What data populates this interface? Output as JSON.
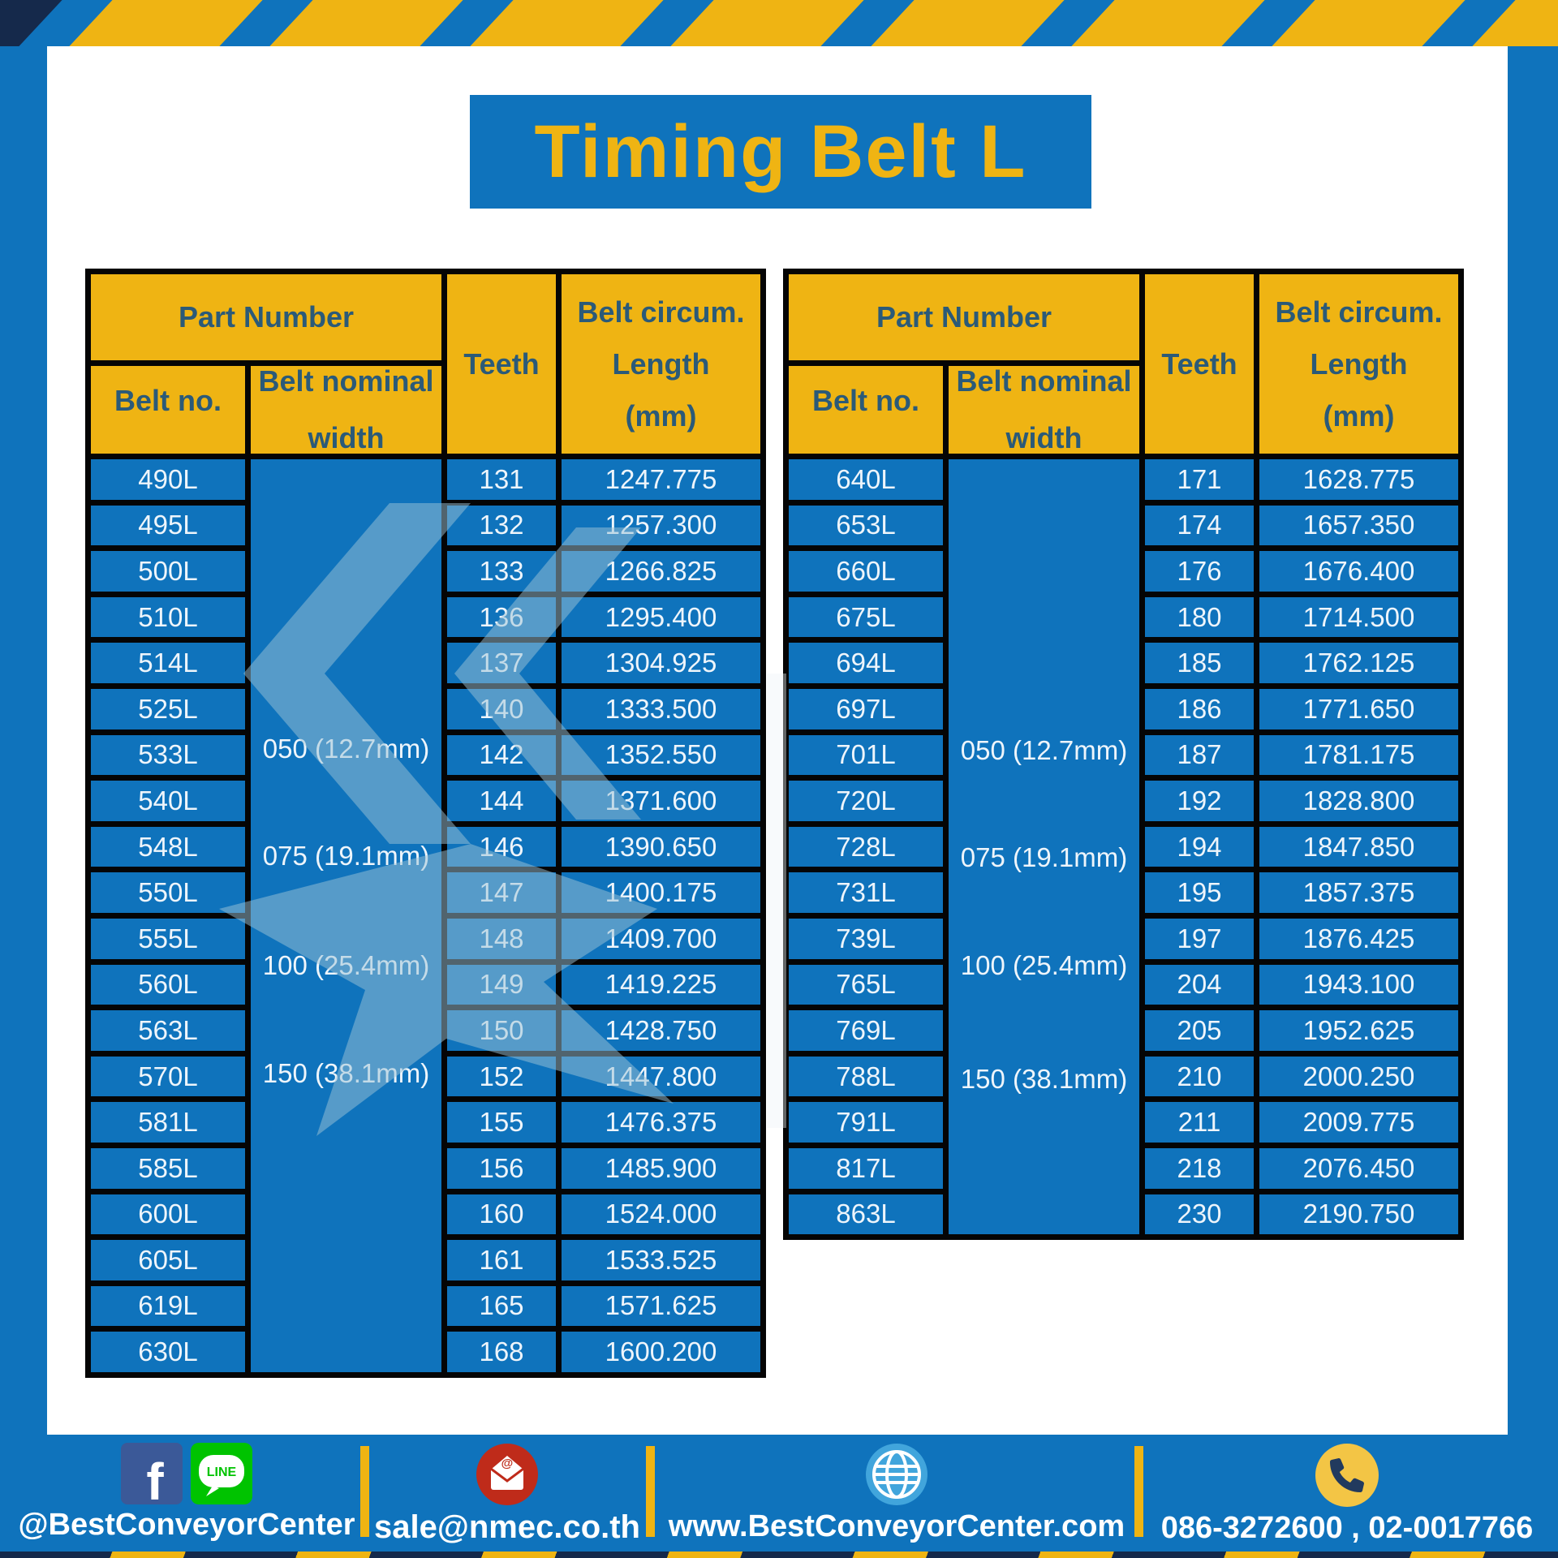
{
  "title": "Timing Belt L",
  "colors": {
    "blue": "#0f73bc",
    "yellow": "#efb413",
    "navy": "#15294b",
    "header_text": "#2b5a78"
  },
  "tables": [
    {
      "headers": {
        "part_number": "Part Number",
        "belt_no": "Belt no.",
        "belt_nominal_lines": [
          "Belt nominal",
          "width"
        ],
        "teeth": "Teeth",
        "length_lines": [
          "Belt circum.",
          "Length",
          "(mm)"
        ]
      },
      "width_labels": [
        "050 (12.7mm)",
        "075 (19.1mm)",
        "100 (25.4mm)",
        "150 (38.1mm)"
      ],
      "rows": [
        {
          "belt_no": "490L",
          "teeth": "131",
          "length": "1247.775"
        },
        {
          "belt_no": "495L",
          "teeth": "132",
          "length": "1257.300"
        },
        {
          "belt_no": "500L",
          "teeth": "133",
          "length": "1266.825"
        },
        {
          "belt_no": "510L",
          "teeth": "136",
          "length": "1295.400"
        },
        {
          "belt_no": "514L",
          "teeth": "137",
          "length": "1304.925"
        },
        {
          "belt_no": "525L",
          "teeth": "140",
          "length": "1333.500"
        },
        {
          "belt_no": "533L",
          "teeth": "142",
          "length": "1352.550"
        },
        {
          "belt_no": "540L",
          "teeth": "144",
          "length": "1371.600"
        },
        {
          "belt_no": "548L",
          "teeth": "146",
          "length": "1390.650"
        },
        {
          "belt_no": "550L",
          "teeth": "147",
          "length": "1400.175"
        },
        {
          "belt_no": "555L",
          "teeth": "148",
          "length": "1409.700"
        },
        {
          "belt_no": "560L",
          "teeth": "149",
          "length": "1419.225"
        },
        {
          "belt_no": "563L",
          "teeth": "150",
          "length": "1428.750"
        },
        {
          "belt_no": "570L",
          "teeth": "152",
          "length": "1447.800"
        },
        {
          "belt_no": "581L",
          "teeth": "155",
          "length": "1476.375"
        },
        {
          "belt_no": "585L",
          "teeth": "156",
          "length": "1485.900"
        },
        {
          "belt_no": "600L",
          "teeth": "160",
          "length": "1524.000"
        },
        {
          "belt_no": "605L",
          "teeth": "161",
          "length": "1533.525"
        },
        {
          "belt_no": "619L",
          "teeth": "165",
          "length": "1571.625"
        },
        {
          "belt_no": "630L",
          "teeth": "168",
          "length": "1600.200"
        }
      ]
    },
    {
      "headers": {
        "part_number": "Part Number",
        "belt_no": "Belt no.",
        "belt_nominal_lines": [
          "Belt nominal",
          "width"
        ],
        "teeth": "Teeth",
        "length_lines": [
          "Belt circum.",
          "Length",
          "(mm)"
        ]
      },
      "width_labels": [
        "050 (12.7mm)",
        "075 (19.1mm)",
        "100 (25.4mm)",
        "150 (38.1mm)"
      ],
      "rows": [
        {
          "belt_no": "640L",
          "teeth": "171",
          "length": "1628.775"
        },
        {
          "belt_no": "653L",
          "teeth": "174",
          "length": "1657.350"
        },
        {
          "belt_no": "660L",
          "teeth": "176",
          "length": "1676.400"
        },
        {
          "belt_no": "675L",
          "teeth": "180",
          "length": "1714.500"
        },
        {
          "belt_no": "694L",
          "teeth": "185",
          "length": "1762.125"
        },
        {
          "belt_no": "697L",
          "teeth": "186",
          "length": "1771.650"
        },
        {
          "belt_no": "701L",
          "teeth": "187",
          "length": "1781.175"
        },
        {
          "belt_no": "720L",
          "teeth": "192",
          "length": "1828.800"
        },
        {
          "belt_no": "728L",
          "teeth": "194",
          "length": "1847.850"
        },
        {
          "belt_no": "731L",
          "teeth": "195",
          "length": "1857.375"
        },
        {
          "belt_no": "739L",
          "teeth": "197",
          "length": "1876.425"
        },
        {
          "belt_no": "765L",
          "teeth": "204",
          "length": "1943.100"
        },
        {
          "belt_no": "769L",
          "teeth": "205",
          "length": "1952.625"
        },
        {
          "belt_no": "788L",
          "teeth": "210",
          "length": "2000.250"
        },
        {
          "belt_no": "791L",
          "teeth": "211",
          "length": "2009.775"
        },
        {
          "belt_no": "817L",
          "teeth": "218",
          "length": "2076.450"
        },
        {
          "belt_no": "863L",
          "teeth": "230",
          "length": "2190.750"
        }
      ]
    }
  ],
  "footer": {
    "social_caption": "@BestConveyorCenter",
    "facebook_letter": "f",
    "line_label": "LINE",
    "email": "sale@nmec.co.th",
    "email_at": "@",
    "website": "www.BestConveyorCenter.com",
    "phone": "086-3272600 , 02-0017766"
  }
}
